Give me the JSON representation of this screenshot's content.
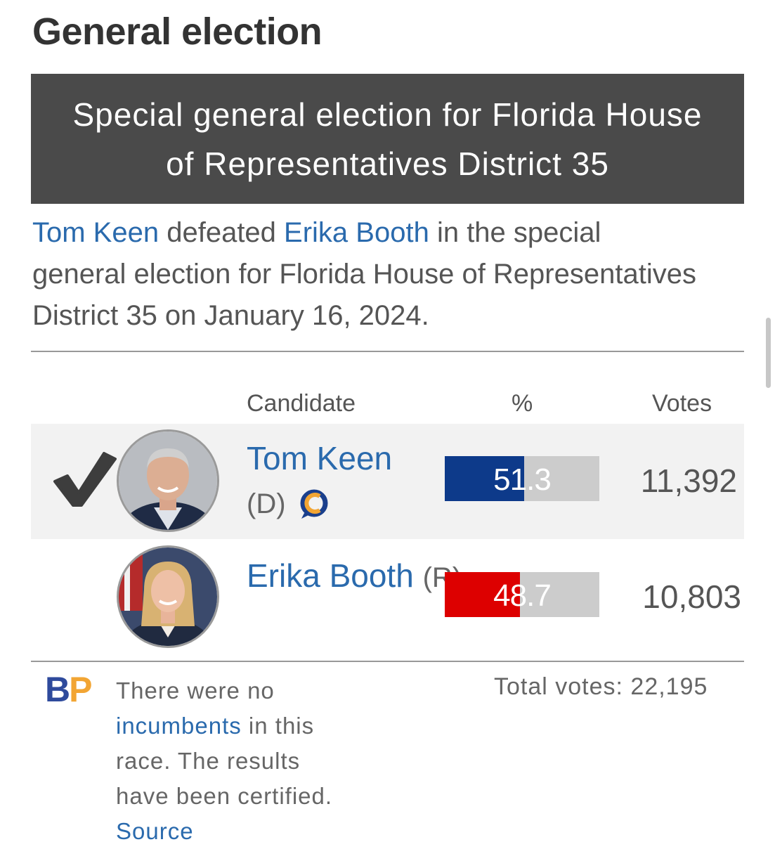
{
  "page": {
    "heading": "General election",
    "race_title": "Special general election for Florida House of Representatives District 35"
  },
  "summary": {
    "winner": "Tom Keen",
    "defeated_text": " defeated ",
    "loser": "Erika Booth",
    "rest": " in the special general election for Florida House of Representatives District 35 on January 16, 2024."
  },
  "table": {
    "headers": {
      "candidate": "Candidate",
      "percent": "%",
      "votes": "Votes"
    },
    "candidates": [
      {
        "name": "Tom Keen",
        "party": "(D)",
        "percent": 51.3,
        "percent_label": "51.3",
        "votes": "11,392",
        "winner": true,
        "bar_color": "#0d3a8a"
      },
      {
        "name": "Erika Booth",
        "party": "(R)",
        "percent": 48.7,
        "percent_label": "48.7",
        "votes": "10,803",
        "winner": false,
        "bar_color": "#dd0000"
      }
    ]
  },
  "footer": {
    "logo_b": "B",
    "logo_p": "P",
    "note_prefix": "There were no ",
    "note_link": "incumbents",
    "note_middle": " in this race. The results have been certified. ",
    "source_link": "Source",
    "total_votes": "Total votes: 22,195"
  },
  "colors": {
    "link": "#2a6aad",
    "banner": "#4a4a4a",
    "democrat": "#0d3a8a",
    "republican": "#dd0000"
  }
}
